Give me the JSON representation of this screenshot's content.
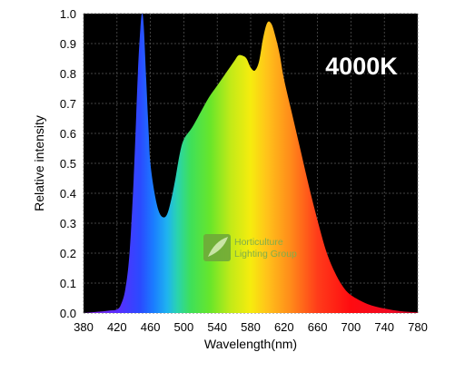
{
  "chart_data": {
    "type": "area",
    "badge": "4000K",
    "xlabel": "Wavelength(nm)",
    "ylabel": "Relative intensity",
    "xlim": [
      380,
      780
    ],
    "ylim": [
      0,
      1.0
    ],
    "x_ticks": [
      380,
      420,
      460,
      500,
      540,
      580,
      620,
      660,
      700,
      740,
      780
    ],
    "y_ticks": [
      "0.0",
      "0.1",
      "0.2",
      "0.3",
      "0.4",
      "0.5",
      "0.6",
      "0.7",
      "0.8",
      "0.9",
      "1.0"
    ],
    "y_tick_values": [
      0,
      0.1,
      0.2,
      0.3,
      0.4,
      0.5,
      0.6,
      0.7,
      0.8,
      0.9,
      1.0
    ],
    "grid": true,
    "background_color": "#000000",
    "badge_color": "#ffffff",
    "x": [
      380,
      400,
      410,
      420,
      425,
      430,
      435,
      440,
      445,
      448,
      450,
      452,
      455,
      458,
      460,
      465,
      470,
      475,
      480,
      485,
      490,
      495,
      500,
      510,
      520,
      530,
      540,
      550,
      560,
      565,
      570,
      575,
      580,
      585,
      590,
      595,
      600,
      605,
      610,
      615,
      620,
      630,
      640,
      650,
      660,
      670,
      680,
      690,
      700,
      720,
      740,
      760,
      780
    ],
    "y": [
      0.0,
      0.005,
      0.008,
      0.012,
      0.03,
      0.08,
      0.2,
      0.45,
      0.8,
      0.95,
      1.0,
      0.96,
      0.78,
      0.6,
      0.5,
      0.4,
      0.34,
      0.32,
      0.33,
      0.38,
      0.45,
      0.53,
      0.58,
      0.62,
      0.67,
      0.72,
      0.76,
      0.8,
      0.84,
      0.86,
      0.86,
      0.85,
      0.82,
      0.81,
      0.84,
      0.92,
      0.97,
      0.965,
      0.92,
      0.86,
      0.78,
      0.66,
      0.54,
      0.42,
      0.31,
      0.21,
      0.14,
      0.09,
      0.06,
      0.03,
      0.015,
      0.006,
      0.002
    ]
  },
  "watermark": {
    "line1": "Horticulture",
    "line2": "Lighting Group"
  }
}
